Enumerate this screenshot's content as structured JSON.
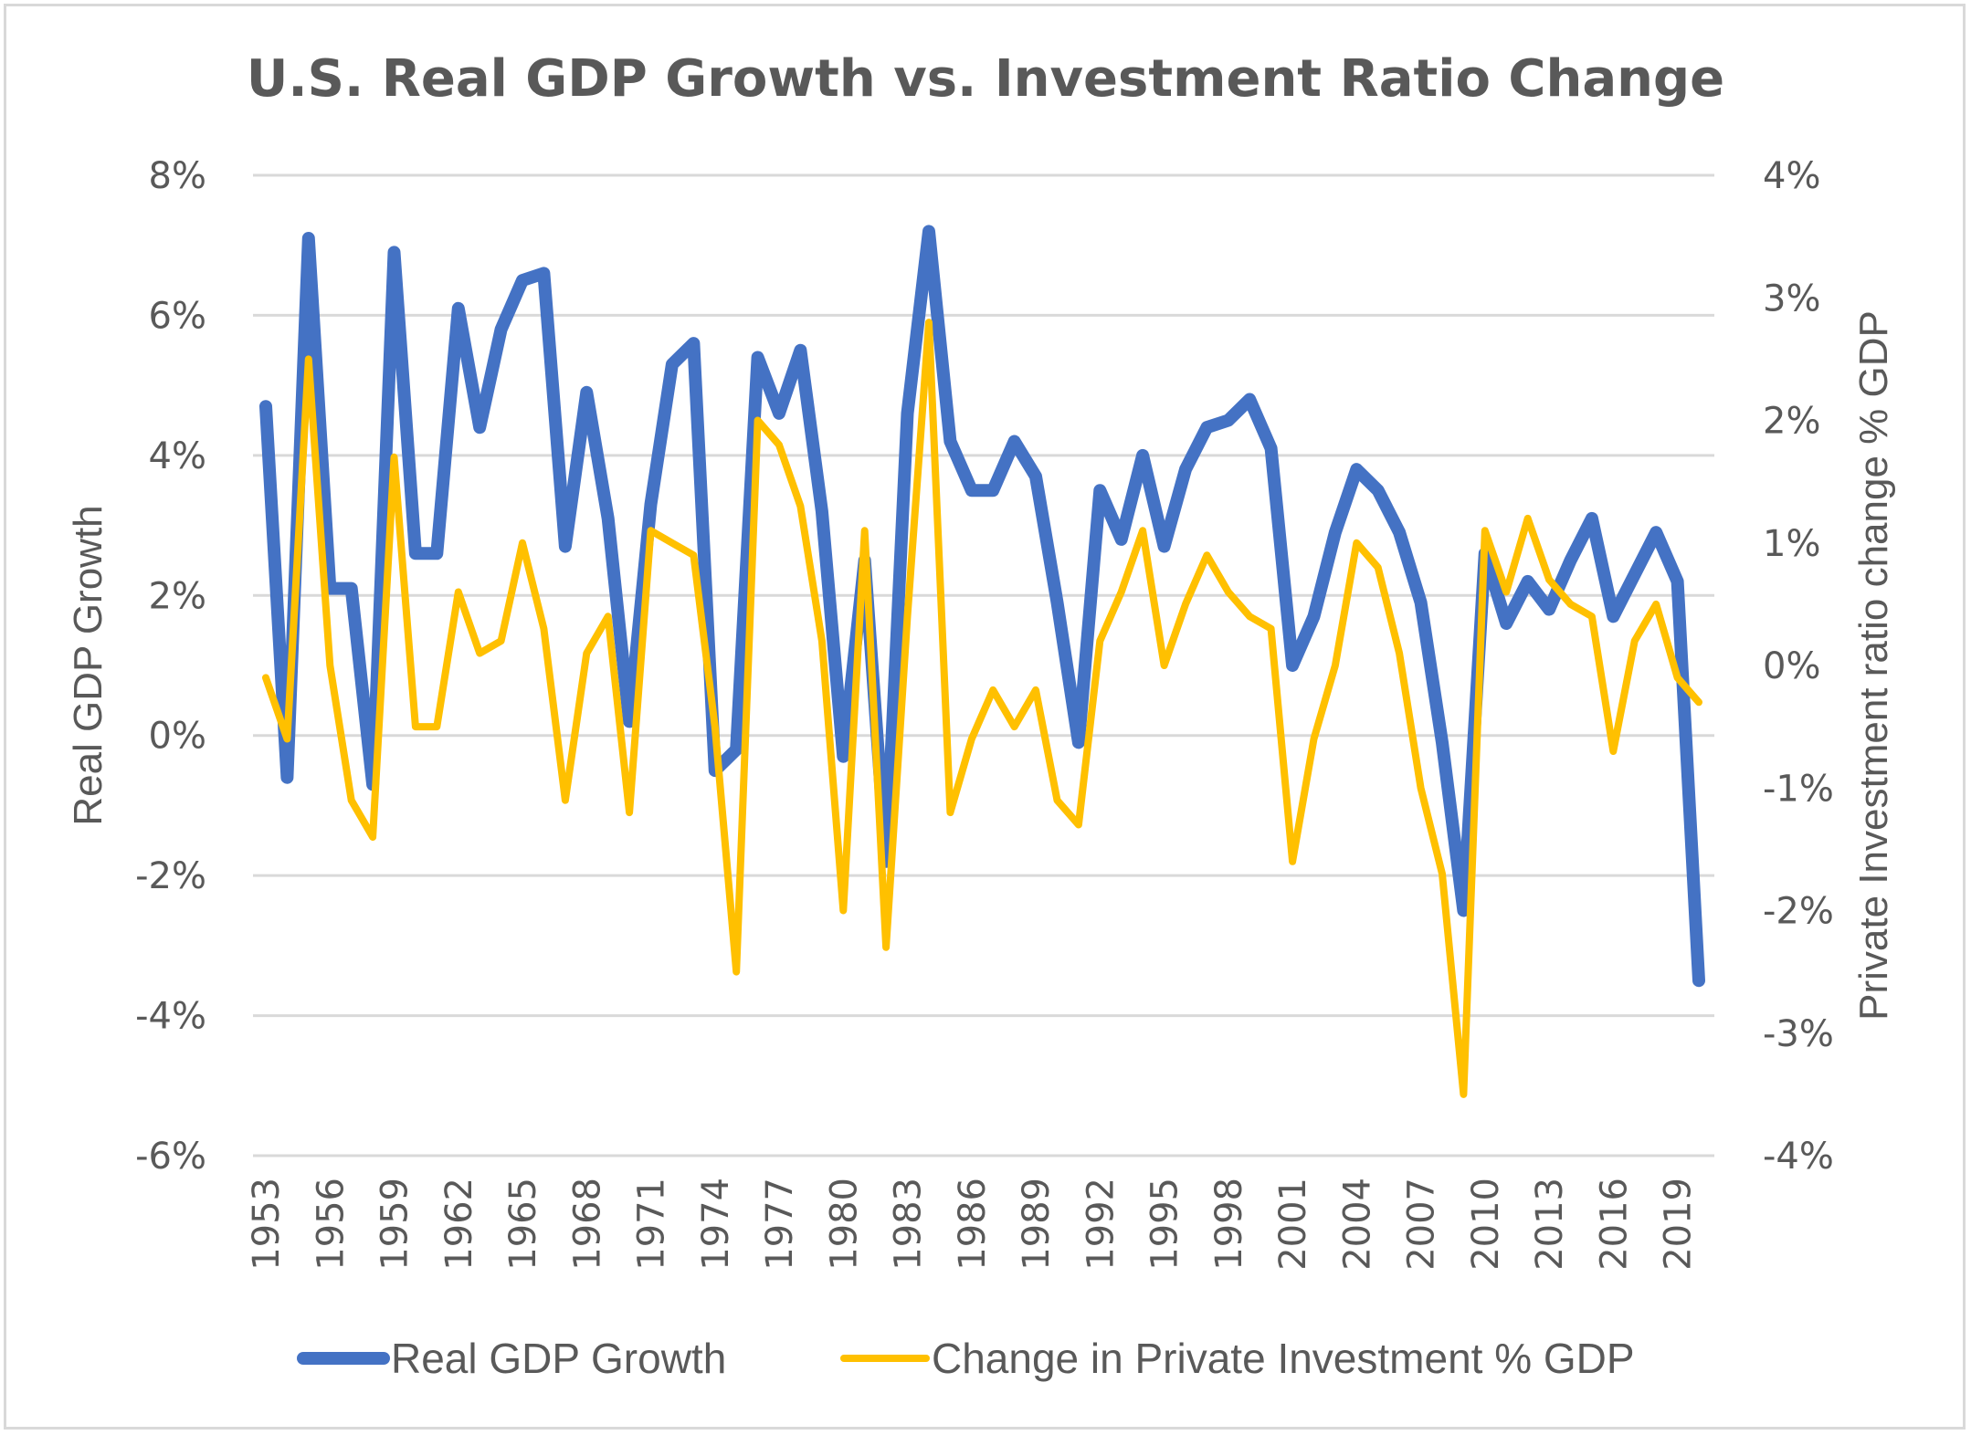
{
  "chart_data": {
    "type": "line",
    "title": "U.S. Real GDP Growth vs. Investment Ratio Change",
    "xlabel": "",
    "ylabel": "Real GDP Growth",
    "y2label": "Private Investment ratio change % GDP",
    "ylim": [
      -6,
      8
    ],
    "y2lim": [
      -4,
      4
    ],
    "yticks": [
      "8%",
      "6%",
      "4%",
      "2%",
      "0%",
      "-2%",
      "-4%",
      "-6%"
    ],
    "ytick_values": [
      8,
      6,
      4,
      2,
      0,
      -2,
      -4,
      -6
    ],
    "y2ticks": [
      "4%",
      "3%",
      "2%",
      "1%",
      "0%",
      "-1%",
      "-2%",
      "-3%",
      "-4%"
    ],
    "y2tick_values": [
      4,
      3,
      2,
      1,
      0,
      -1,
      -2,
      -3,
      -4
    ],
    "xtick_labels": [
      "1953",
      "1956",
      "1959",
      "1962",
      "1965",
      "1968",
      "1971",
      "1974",
      "1977",
      "1980",
      "1983",
      "1986",
      "1989",
      "1992",
      "1995",
      "1998",
      "2001",
      "2004",
      "2007",
      "2010",
      "2013",
      "2016",
      "2019"
    ],
    "grid": true,
    "legend_position": "bottom",
    "x": [
      1953,
      1954,
      1955,
      1956,
      1957,
      1958,
      1959,
      1960,
      1961,
      1962,
      1963,
      1964,
      1965,
      1966,
      1967,
      1968,
      1969,
      1970,
      1971,
      1972,
      1973,
      1974,
      1975,
      1976,
      1977,
      1978,
      1979,
      1980,
      1981,
      1982,
      1983,
      1984,
      1985,
      1986,
      1987,
      1988,
      1989,
      1990,
      1991,
      1992,
      1993,
      1994,
      1995,
      1996,
      1997,
      1998,
      1999,
      2000,
      2001,
      2002,
      2003,
      2004,
      2005,
      2006,
      2007,
      2008,
      2009,
      2010,
      2011,
      2012,
      2013,
      2014,
      2015,
      2016,
      2017,
      2018,
      2019,
      2020
    ],
    "series": [
      {
        "name": "Real GDP Growth",
        "axis": "left",
        "color": "#4472C4",
        "values": [
          4.7,
          -0.6,
          7.1,
          2.1,
          2.1,
          -0.7,
          6.9,
          2.6,
          2.6,
          6.1,
          4.4,
          5.8,
          6.5,
          6.6,
          2.7,
          4.9,
          3.1,
          0.2,
          3.3,
          5.3,
          5.6,
          -0.5,
          -0.2,
          5.4,
          4.6,
          5.5,
          3.2,
          -0.3,
          2.5,
          -1.8,
          4.6,
          7.2,
          4.2,
          3.5,
          3.5,
          4.2,
          3.7,
          1.9,
          -0.1,
          3.5,
          2.8,
          4.0,
          2.7,
          3.8,
          4.4,
          4.5,
          4.8,
          4.1,
          1.0,
          1.7,
          2.9,
          3.8,
          3.5,
          2.9,
          1.9,
          -0.1,
          -2.5,
          2.6,
          1.6,
          2.2,
          1.8,
          2.5,
          3.1,
          1.7,
          2.3,
          2.9,
          2.2,
          -3.5
        ]
      },
      {
        "name": "Change in Private Investment % GDP",
        "axis": "right",
        "color": "#FFC000",
        "values": [
          -0.1,
          -0.6,
          2.5,
          0.0,
          -1.1,
          -1.4,
          1.7,
          -0.5,
          -0.5,
          0.6,
          0.1,
          0.2,
          1.0,
          0.3,
          -1.1,
          0.1,
          0.4,
          -1.2,
          1.1,
          1.0,
          0.9,
          -0.5,
          -2.5,
          2.0,
          1.8,
          1.3,
          0.2,
          -2.0,
          1.1,
          -2.3,
          0.4,
          2.8,
          -1.2,
          -0.6,
          -0.2,
          -0.5,
          -0.2,
          -1.1,
          -1.3,
          0.2,
          0.6,
          1.1,
          0.0,
          0.5,
          0.9,
          0.6,
          0.4,
          0.3,
          -1.6,
          -0.6,
          0.0,
          1.0,
          0.8,
          0.1,
          -1.0,
          -1.7,
          -3.5,
          1.1,
          0.6,
          1.2,
          0.7,
          0.5,
          0.4,
          -0.7,
          0.2,
          0.5,
          -0.1,
          -0.3
        ]
      }
    ]
  }
}
